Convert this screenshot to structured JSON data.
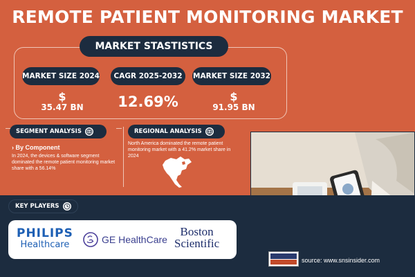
{
  "title": "REMOTE PATIENT MONITORING MARKET",
  "stats": {
    "heading": "MARKET STASTISTICS",
    "items": [
      {
        "label": "MARKET SIZE 2024",
        "currency": "$",
        "value": "35.47 BN"
      },
      {
        "label": "CAGR 2025-2032",
        "value": "12.69%"
      },
      {
        "label": "MARKET SIZE 2032",
        "currency": "$",
        "value": "91.95 BN"
      }
    ]
  },
  "segment": {
    "heading": "SEGMENT ANALYSIS",
    "icon": "globe-icon",
    "subheading": "› By Component",
    "text": "In 2024, the devices & software segment dominated the remote patient monitoring market share with a 56.14%"
  },
  "regional": {
    "heading": "REGIONAL ANALYSIS",
    "icon": "globe-icon",
    "text": "North America dominated the remote patient monitoring market with a 41.2% market share in 2024",
    "map": "north-america-map"
  },
  "players": {
    "heading": "KEY PLAYERS",
    "icon": "clock-icon",
    "philips": {
      "brand": "PHILIPS",
      "sub": "Healthcare"
    },
    "ge": "GE HealthCare",
    "boston": [
      "Boston",
      "Scientific"
    ]
  },
  "source": "source: www.snsinsider.com",
  "colors": {
    "background": "#d4603f",
    "navy": "#1c2c3f",
    "philips_blue": "#1d5fb4"
  }
}
